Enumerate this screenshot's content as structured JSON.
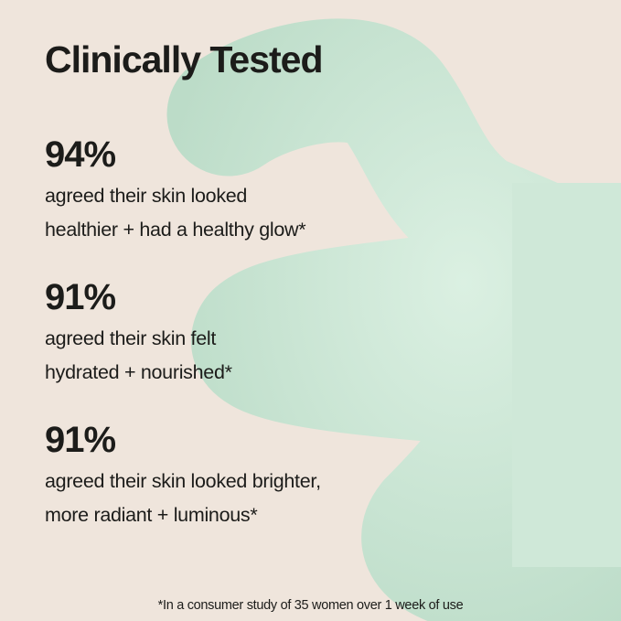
{
  "title": "Clinically Tested",
  "stats": [
    {
      "value": "94%",
      "lines": [
        "agreed their skin looked",
        "healthier + had a healthy glow*"
      ]
    },
    {
      "value": "91%",
      "lines": [
        "agreed their skin felt",
        "hydrated + nourished*"
      ]
    },
    {
      "value": "91%",
      "lines": [
        "agreed their skin looked brighter,",
        "more radiant + luminous*"
      ]
    }
  ],
  "footnote": "*In a consumer study of 35 women over 1 week of use",
  "colors": {
    "background": "#efe5dc",
    "blob": "#cfe8d8",
    "text": "#1c1c1a"
  }
}
